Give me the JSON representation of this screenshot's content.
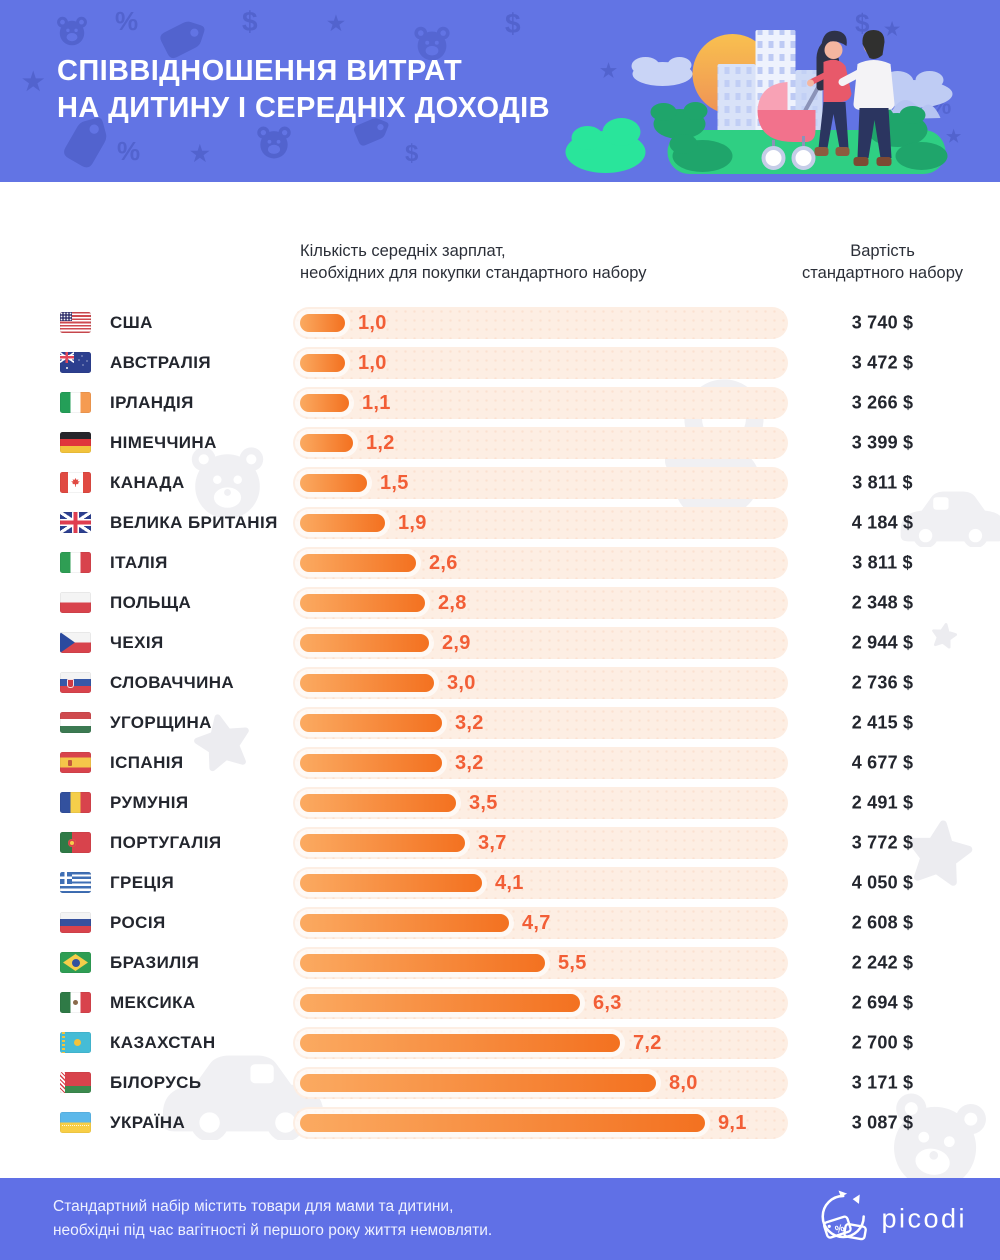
{
  "header": {
    "title_line1": "СПІВВІДНОШЕННЯ ВИТРАТ",
    "title_line2": "НА ДИТИНУ І СЕРЕДНІХ ДОХОДІВ"
  },
  "columns": {
    "bars_header_line1": "Кількість середніх зарплат,",
    "bars_header_line2": "необхідних для покупки стандартного набору",
    "cost_header_line1": "Вартість",
    "cost_header_line2": "стандартного набору"
  },
  "chart_data": {
    "type": "bar",
    "orientation": "horizontal",
    "title": "Співвідношення витрат на дитину і середніх доходів",
    "value_axis_label": "Кількість середніх зарплат, необхідних для покупки стандартного набору",
    "secondary_column_label": "Вартість стандартного набору",
    "xlim": [
      0,
      11
    ],
    "grid": false,
    "legend": false,
    "rows": [
      {
        "country": "США",
        "flag": "us",
        "salaries": 1.0,
        "salaries_label": "1,0",
        "cost_usd": 3740,
        "cost_label": "3 740 $"
      },
      {
        "country": "АВСТРАЛІЯ",
        "flag": "au",
        "salaries": 1.0,
        "salaries_label": "1,0",
        "cost_usd": 3472,
        "cost_label": "3 472 $"
      },
      {
        "country": "ІРЛАНДІЯ",
        "flag": "ie",
        "salaries": 1.1,
        "salaries_label": "1,1",
        "cost_usd": 3266,
        "cost_label": "3 266 $"
      },
      {
        "country": "НІМЕЧЧИНА",
        "flag": "de",
        "salaries": 1.2,
        "salaries_label": "1,2",
        "cost_usd": 3399,
        "cost_label": "3 399 $"
      },
      {
        "country": "КАНАДА",
        "flag": "ca",
        "salaries": 1.5,
        "salaries_label": "1,5",
        "cost_usd": 3811,
        "cost_label": "3 811 $"
      },
      {
        "country": "ВЕЛИКА БРИТАНІЯ",
        "flag": "gb",
        "salaries": 1.9,
        "salaries_label": "1,9",
        "cost_usd": 4184,
        "cost_label": "4 184 $"
      },
      {
        "country": "ІТАЛІЯ",
        "flag": "it",
        "salaries": 2.6,
        "salaries_label": "2,6",
        "cost_usd": 3811,
        "cost_label": "3 811 $"
      },
      {
        "country": "ПОЛЬЩА",
        "flag": "pl",
        "salaries": 2.8,
        "salaries_label": "2,8",
        "cost_usd": 2348,
        "cost_label": "2 348 $"
      },
      {
        "country": "ЧЕХІЯ",
        "flag": "cz",
        "salaries": 2.9,
        "salaries_label": "2,9",
        "cost_usd": 2944,
        "cost_label": "2 944 $"
      },
      {
        "country": "СЛОВАЧЧИНА",
        "flag": "sk",
        "salaries": 3.0,
        "salaries_label": "3,0",
        "cost_usd": 2736,
        "cost_label": "2 736 $"
      },
      {
        "country": "УГОРЩИНА",
        "flag": "hu",
        "salaries": 3.2,
        "salaries_label": "3,2",
        "cost_usd": 2415,
        "cost_label": "2 415 $"
      },
      {
        "country": "ІСПАНІЯ",
        "flag": "es",
        "salaries": 3.2,
        "salaries_label": "3,2",
        "cost_usd": 4677,
        "cost_label": "4 677 $"
      },
      {
        "country": "РУМУНІЯ",
        "flag": "ro",
        "salaries": 3.5,
        "salaries_label": "3,5",
        "cost_usd": 2491,
        "cost_label": "2 491 $"
      },
      {
        "country": "ПОРТУГАЛІЯ",
        "flag": "pt",
        "salaries": 3.7,
        "salaries_label": "3,7",
        "cost_usd": 3772,
        "cost_label": "3 772 $"
      },
      {
        "country": "ГРЕЦІЯ",
        "flag": "gr",
        "salaries": 4.1,
        "salaries_label": "4,1",
        "cost_usd": 4050,
        "cost_label": "4 050 $"
      },
      {
        "country": "РОСІЯ",
        "flag": "ru",
        "salaries": 4.7,
        "salaries_label": "4,7",
        "cost_usd": 2608,
        "cost_label": "2 608 $"
      },
      {
        "country": "БРАЗИЛІЯ",
        "flag": "br",
        "salaries": 5.5,
        "salaries_label": "5,5",
        "cost_usd": 2242,
        "cost_label": "2 242 $"
      },
      {
        "country": "МЕКСИКА",
        "flag": "mx",
        "salaries": 6.3,
        "salaries_label": "6,3",
        "cost_usd": 2694,
        "cost_label": "2 694 $"
      },
      {
        "country": "КАЗАХСТАН",
        "flag": "kz",
        "salaries": 7.2,
        "salaries_label": "7,2",
        "cost_usd": 2700,
        "cost_label": "2 700 $"
      },
      {
        "country": "БІЛОРУСЬ",
        "flag": "by",
        "salaries": 8.0,
        "salaries_label": "8,0",
        "cost_usd": 3171,
        "cost_label": "3 171 $"
      },
      {
        "country": "УКРАЇНА",
        "flag": "ua",
        "salaries": 9.1,
        "salaries_label": "9,1",
        "cost_usd": 3087,
        "cost_label": "3 087 $"
      }
    ]
  },
  "footer": {
    "note_line1": "Стандартний набір містить товари для мами та дитини,",
    "note_line2": "необхідні під час вагітності й першого року життя немовляти.",
    "brand": "picodi"
  },
  "colors": {
    "header_bg": "#6274e4",
    "footer_bg": "#6070e6",
    "bar_fill_start": "#fbaa61",
    "bar_fill_end": "#f37120",
    "bar_track": "#fdeee3",
    "value_text": "#f25e36",
    "dark_text": "#23262e"
  }
}
